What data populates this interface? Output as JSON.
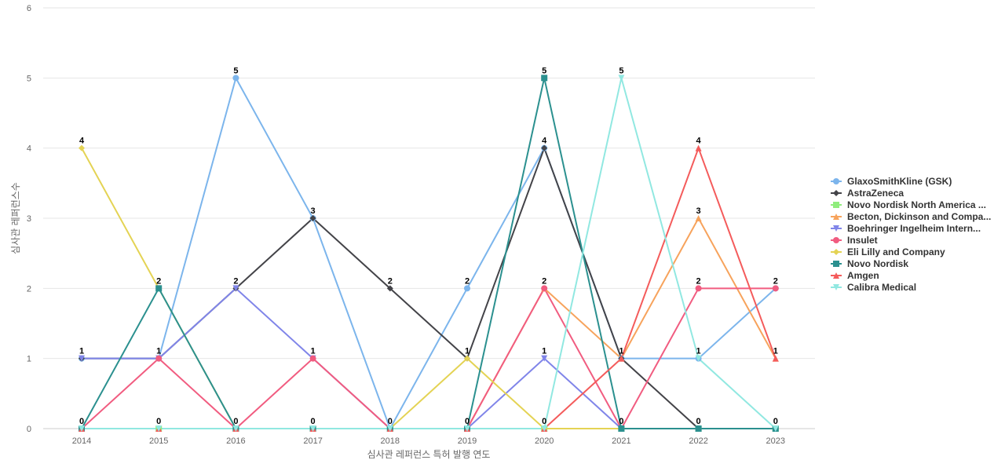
{
  "chart_data": {
    "type": "line",
    "xlabel": "심사관 레퍼런스 특허 발행 연도",
    "ylabel": "심사관 레퍼런스수",
    "x": [
      "2014",
      "2015",
      "2016",
      "2017",
      "2018",
      "2019",
      "2020",
      "2021",
      "2022",
      "2023"
    ],
    "ylim": [
      0,
      6
    ],
    "yticks": [
      0,
      1,
      2,
      3,
      4,
      5,
      6
    ],
    "grid": true,
    "legend_position": "right",
    "series": [
      {
        "name": "GlaxoSmithKline (GSK)",
        "color": "#7cb5ec",
        "marker": "circle",
        "values": [
          1,
          1,
          5,
          3,
          0,
          2,
          4,
          1,
          1,
          2
        ]
      },
      {
        "name": "AstraZeneca",
        "color": "#434348",
        "marker": "diamond",
        "values": [
          1,
          1,
          2,
          3,
          2,
          1,
          4,
          1,
          0,
          0
        ]
      },
      {
        "name": "Novo Nordisk North America ...",
        "color": "#90ed7d",
        "marker": "square",
        "values": [
          0,
          0,
          0,
          0,
          0,
          0,
          0,
          0,
          0,
          0
        ]
      },
      {
        "name": "Becton, Dickinson and Compa...",
        "color": "#f7a35c",
        "marker": "triangle",
        "values": [
          0,
          0,
          0,
          0,
          0,
          0,
          2,
          1,
          3,
          1
        ]
      },
      {
        "name": "Boehringer Ingelheim Intern...",
        "color": "#8085e9",
        "marker": "triangle-down",
        "values": [
          1,
          1,
          2,
          1,
          0,
          0,
          1,
          0,
          0,
          0
        ]
      },
      {
        "name": "Insulet",
        "color": "#f15c80",
        "marker": "circle",
        "values": [
          0,
          1,
          0,
          1,
          0,
          0,
          2,
          0,
          2,
          2
        ]
      },
      {
        "name": "Eli Lilly and Company",
        "color": "#e4d354",
        "marker": "diamond",
        "values": [
          4,
          2,
          0,
          0,
          0,
          1,
          0,
          0,
          0,
          0
        ]
      },
      {
        "name": "Novo Nordisk",
        "color": "#2b908f",
        "marker": "square",
        "values": [
          0,
          2,
          0,
          0,
          0,
          0,
          5,
          0,
          0,
          0
        ]
      },
      {
        "name": "Amgen",
        "color": "#f45b5b",
        "marker": "triangle",
        "values": [
          0,
          0,
          0,
          0,
          0,
          0,
          0,
          1,
          4,
          1
        ]
      },
      {
        "name": "Calibra Medical",
        "color": "#91e8e1",
        "marker": "triangle-down",
        "values": [
          0,
          0,
          0,
          0,
          0,
          0,
          0,
          5,
          1,
          0
        ]
      }
    ],
    "data_labels": [
      {
        "x": "2014",
        "y": 4,
        "text": "4"
      },
      {
        "x": "2014",
        "y": 1,
        "text": "1"
      },
      {
        "x": "2014",
        "y": 0,
        "text": "0"
      },
      {
        "x": "2015",
        "y": 2,
        "text": "2"
      },
      {
        "x": "2015",
        "y": 1,
        "text": "1"
      },
      {
        "x": "2015",
        "y": 0,
        "text": "0"
      },
      {
        "x": "2016",
        "y": 5,
        "text": "5"
      },
      {
        "x": "2016",
        "y": 2,
        "text": "2"
      },
      {
        "x": "2016",
        "y": 0,
        "text": "0"
      },
      {
        "x": "2017",
        "y": 3,
        "text": "3"
      },
      {
        "x": "2017",
        "y": 1,
        "text": "1"
      },
      {
        "x": "2017",
        "y": 0,
        "text": "0"
      },
      {
        "x": "2018",
        "y": 2,
        "text": "2"
      },
      {
        "x": "2018",
        "y": 0,
        "text": "0"
      },
      {
        "x": "2019",
        "y": 2,
        "text": "2"
      },
      {
        "x": "2019",
        "y": 1,
        "text": "1"
      },
      {
        "x": "2019",
        "y": 0,
        "text": "0"
      },
      {
        "x": "2020",
        "y": 5,
        "text": "5"
      },
      {
        "x": "2020",
        "y": 4,
        "text": "4"
      },
      {
        "x": "2020",
        "y": 2,
        "text": "2"
      },
      {
        "x": "2020",
        "y": 1,
        "text": "1"
      },
      {
        "x": "2020",
        "y": 0,
        "text": "0"
      },
      {
        "x": "2021",
        "y": 5,
        "text": "5"
      },
      {
        "x": "2021",
        "y": 1,
        "text": "1"
      },
      {
        "x": "2021",
        "y": 0,
        "text": "0"
      },
      {
        "x": "2022",
        "y": 4,
        "text": "4"
      },
      {
        "x": "2022",
        "y": 3,
        "text": "3"
      },
      {
        "x": "2022",
        "y": 2,
        "text": "2"
      },
      {
        "x": "2022",
        "y": 1,
        "text": "1"
      },
      {
        "x": "2022",
        "y": 0,
        "text": "0"
      },
      {
        "x": "2023",
        "y": 2,
        "text": "2"
      },
      {
        "x": "2023",
        "y": 1,
        "text": "1"
      },
      {
        "x": "2023",
        "y": 0,
        "text": "0"
      }
    ]
  }
}
